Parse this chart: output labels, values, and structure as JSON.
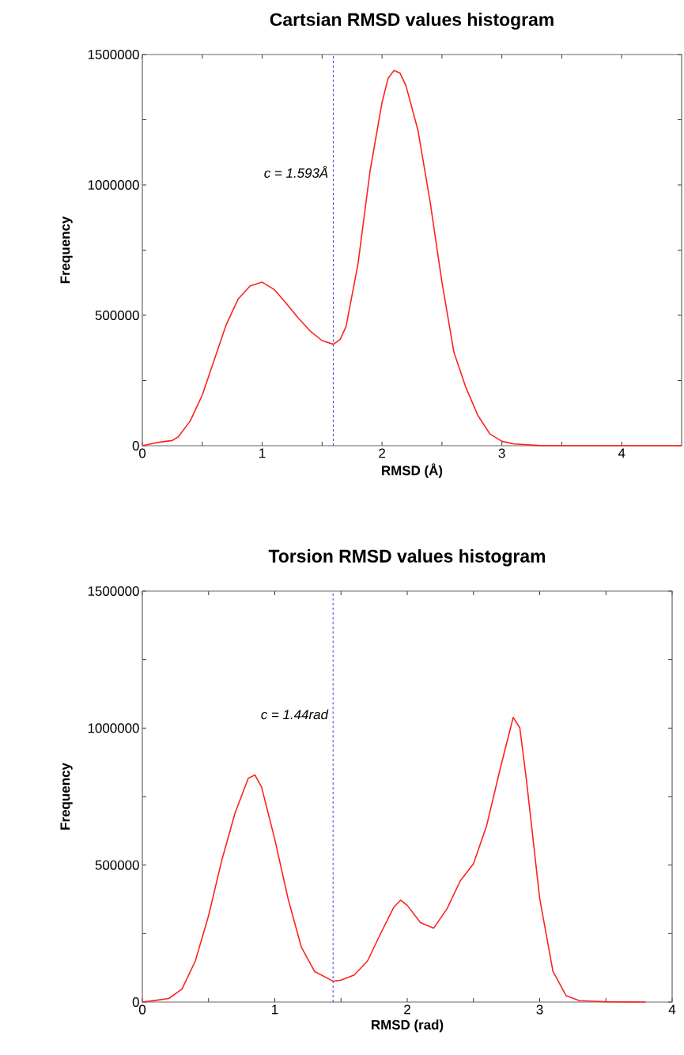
{
  "chart_data": [
    {
      "type": "line",
      "title": "Cartsian RMSD values histogram",
      "xlabel": "RMSD (Å)",
      "ylabel": "Frequency",
      "xlim": [
        0,
        4.5
      ],
      "ylim": [
        0,
        1500000
      ],
      "xticks": [
        0,
        {
          "value": 0.5,
          "label": null
        },
        1,
        {
          "value": 1.5,
          "label": null
        },
        2,
        {
          "value": 2.5,
          "label": null
        },
        3,
        {
          "value": 3.5,
          "label": null
        },
        4
      ],
      "yticks": [
        0,
        {
          "value": 250000,
          "label": null
        },
        500000,
        {
          "value": 750000,
          "label": null
        },
        1000000,
        {
          "value": 1250000,
          "label": null
        },
        1500000
      ],
      "ref_lines": [
        {
          "axis": "x",
          "value": 1.593,
          "label": "c = 1.593Å",
          "color": "#3333ee",
          "line_style": "dashed"
        }
      ],
      "series": [
        {
          "color": "#ff2020",
          "x": [
            0,
            0.1,
            0.15,
            0.25,
            0.3,
            0.4,
            0.5,
            0.6,
            0.7,
            0.8,
            0.9,
            1.0,
            1.1,
            1.2,
            1.3,
            1.4,
            1.5,
            1.593,
            1.65,
            1.7,
            1.8,
            1.9,
            2.0,
            2.05,
            2.1,
            2.15,
            2.2,
            2.3,
            2.4,
            2.5,
            2.6,
            2.7,
            2.8,
            2.9,
            3.0,
            3.1,
            3.3,
            3.5,
            4.5
          ],
          "values": [
            0,
            10000,
            14000,
            20000,
            34000,
            95000,
            194000,
            329000,
            464000,
            563000,
            613000,
            627000,
            599000,
            546000,
            490000,
            440000,
            403000,
            389000,
            407000,
            457000,
            698000,
            1053000,
            1316000,
            1408000,
            1439000,
            1429000,
            1380000,
            1209000,
            939000,
            627000,
            358000,
            223000,
            116000,
            45000,
            17000,
            7000,
            1000,
            0,
            0
          ]
        }
      ]
    },
    {
      "type": "line",
      "title": "Torsion RMSD values histogram",
      "xlabel": "RMSD (rad)",
      "ylabel": "Frequency",
      "xlim": [
        0,
        4
      ],
      "ylim": [
        0,
        1500000
      ],
      "xticks": [
        0,
        {
          "value": 0.5,
          "label": null
        },
        1,
        {
          "value": 1.5,
          "label": null
        },
        2,
        {
          "value": 2.5,
          "label": null
        },
        3,
        {
          "value": 3.5,
          "label": null
        },
        4
      ],
      "yticks": [
        0,
        {
          "value": 250000,
          "label": null
        },
        500000,
        {
          "value": 750000,
          "label": null
        },
        1000000,
        {
          "value": 1250000,
          "label": null
        },
        1500000
      ],
      "ref_lines": [
        {
          "axis": "x",
          "value": 1.44,
          "label": "c = 1.44rad",
          "color": "#3333ee",
          "line_style": "dashed"
        }
      ],
      "series": [
        {
          "color": "#ff2020",
          "x": [
            0,
            0.1,
            0.2,
            0.3,
            0.4,
            0.5,
            0.6,
            0.7,
            0.8,
            0.85,
            0.9,
            1.0,
            1.1,
            1.2,
            1.3,
            1.44,
            1.5,
            1.6,
            1.7,
            1.8,
            1.9,
            1.95,
            2.0,
            2.1,
            2.2,
            2.3,
            2.4,
            2.5,
            2.6,
            2.7,
            2.8,
            2.85,
            2.9,
            3.0,
            3.1,
            3.2,
            3.3,
            3.5,
            3.8
          ],
          "values": [
            0,
            6000,
            13000,
            48000,
            150000,
            315000,
            518000,
            690000,
            817000,
            829000,
            785000,
            594000,
            378000,
            201000,
            112000,
            76000,
            80000,
            99000,
            150000,
            251000,
            347000,
            372000,
            353000,
            290000,
            270000,
            340000,
            442000,
            505000,
            645000,
            848000,
            1039000,
            1001000,
            810000,
            378000,
            112000,
            23000,
            5000,
            1000,
            0
          ]
        }
      ]
    }
  ]
}
